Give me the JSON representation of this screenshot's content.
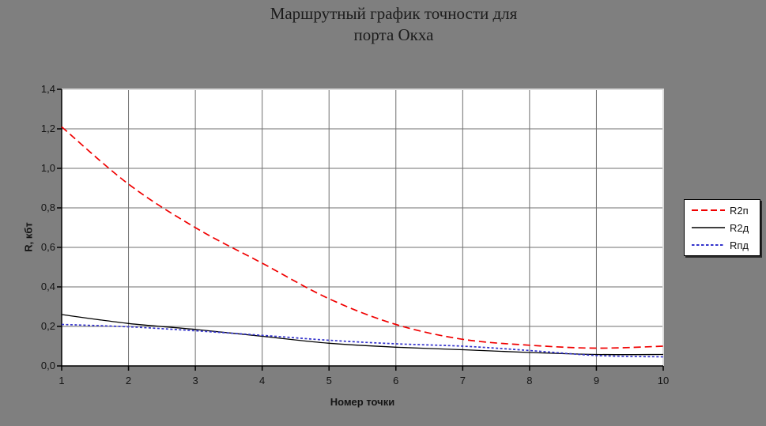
{
  "title": {
    "line1": "Маршрутный график точности для",
    "line2": "порта Окха"
  },
  "axes": {
    "x_title": "Номер точки",
    "y_title": "R, кбт",
    "x_tick_labels": [
      "1",
      "2",
      "3",
      "4",
      "5",
      "6",
      "7",
      "8",
      "9",
      "10"
    ],
    "y_tick_labels": [
      "0,0",
      "0,2",
      "0,4",
      "0,6",
      "0,8",
      "1,0",
      "1,2",
      "1,4"
    ]
  },
  "legend": {
    "position": "right",
    "entries": [
      "R2п",
      "R2д",
      "Rпд"
    ]
  },
  "colors": {
    "background": "#7f7f7f",
    "plot_background": "#ffffff",
    "gridline": "#6f6f6f",
    "axis": "#000000",
    "plot_border_light": "#dcdcdc",
    "series_r2p": "#f00000",
    "series_r2d": "#000000",
    "series_rpd": "#3333cc"
  },
  "chart_data": {
    "type": "line",
    "title": "Маршрутный график точности для порта Окха",
    "xlabel": "Номер точки",
    "ylabel": "R, кбт",
    "x": [
      1,
      2,
      3,
      4,
      5,
      6,
      7,
      8,
      9,
      10
    ],
    "xlim": [
      1,
      10
    ],
    "ylim": [
      0,
      1.4
    ],
    "y_tick_step": 0.2,
    "grid": true,
    "legend_position": "right",
    "series": [
      {
        "name": "R2п",
        "color": "#f00000",
        "style": "dashed",
        "values": [
          1.21,
          0.92,
          0.7,
          0.52,
          0.34,
          0.21,
          0.135,
          0.105,
          0.09,
          0.1
        ]
      },
      {
        "name": "R2д",
        "color": "#000000",
        "style": "solid",
        "values": [
          0.26,
          0.215,
          0.185,
          0.15,
          0.115,
          0.095,
          0.082,
          0.068,
          0.058,
          0.058
        ]
      },
      {
        "name": "Rпд",
        "color": "#3333cc",
        "style": "dotted",
        "values": [
          0.21,
          0.198,
          0.178,
          0.155,
          0.13,
          0.112,
          0.1,
          0.078,
          0.053,
          0.046
        ]
      }
    ]
  }
}
